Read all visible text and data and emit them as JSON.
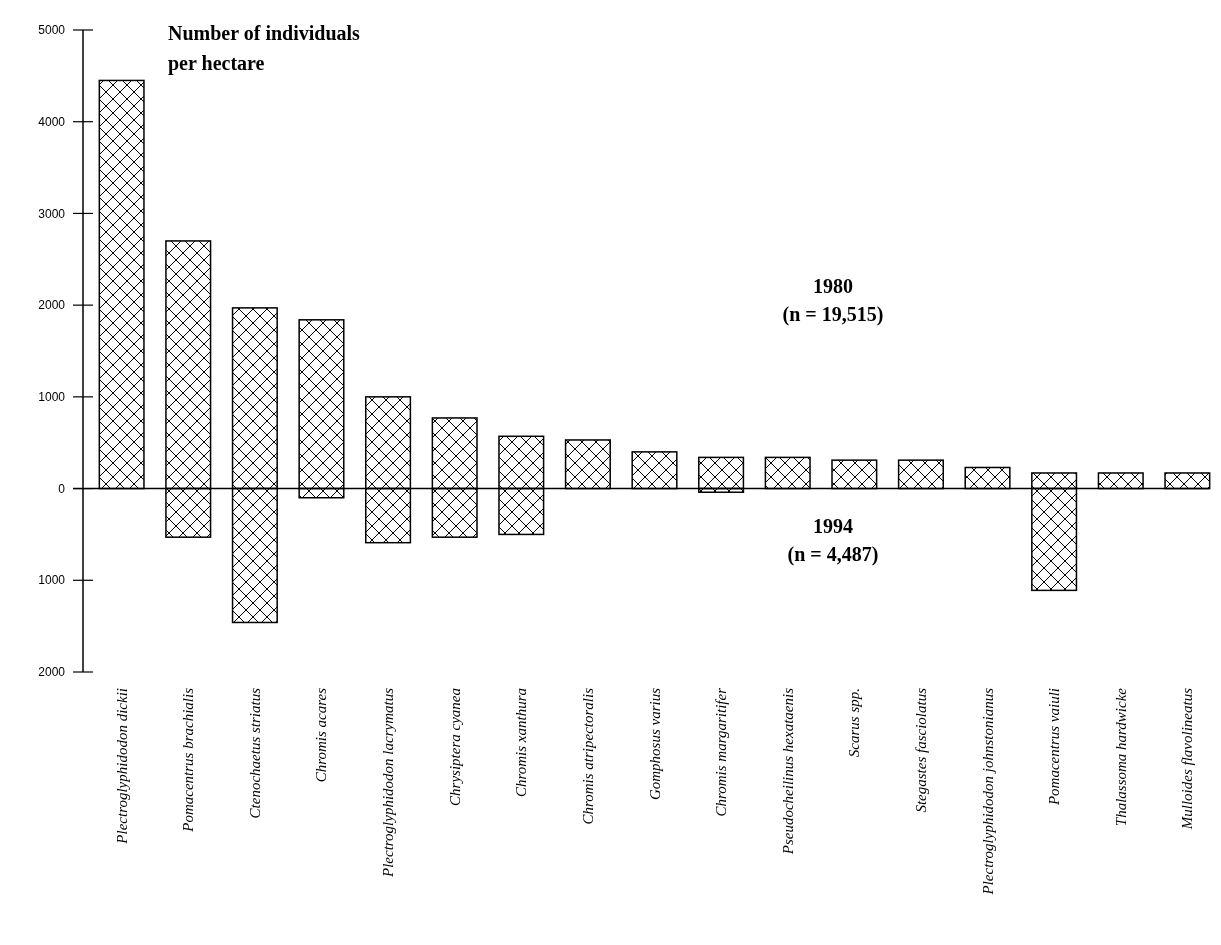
{
  "chart_data": {
    "type": "bar",
    "title": "Number of individuals per hectare",
    "stacked": true,
    "categories": [
      "Plectroglyphidodon dickii",
      "Pomacentrus brachialis",
      "Ctenochaetus striatus",
      "Chromis acares",
      "Plectroglyphidodon lacrymatus",
      "Chrysiptera cyanea",
      "Chromis xanthura",
      "Chromis atripectoralis",
      "Gomphosus varius",
      "Chromis margaritifer",
      "Pseudocheilinus hexataenis",
      "Scarus spp.",
      "Stegastes fasciolatus",
      "Plectroglyphidodon johnstonianus",
      "Pomacentrus vaiuli",
      "Thalassoma hardwicke",
      "Mulloides flavolineatus"
    ],
    "series": [
      {
        "color": "#000000",
        "values": [
          4450,
          2700,
          1970,
          1840,
          1000,
          770,
          570,
          530,
          400,
          340,
          340,
          310,
          310,
          230,
          170,
          170,
          170
        ]
      },
      {
        "color": "#000000",
        "values": [
          0,
          -530,
          -1460,
          -100,
          -590,
          -530,
          -500,
          0,
          0,
          -40,
          0,
          0,
          0,
          0,
          -1110,
          0,
          0
        ]
      }
    ],
    "ylim": [
      -2000,
      5000
    ],
    "yticks": [
      {
        "value": -2000,
        "label": "2000"
      },
      {
        "value": -1000,
        "label": "1000"
      },
      0,
      1000,
      2000,
      3000,
      4000,
      5000
    ],
    "annotations": [
      "1980\n(n = 19,515)",
      "1994\n(n = 4,487)"
    ]
  }
}
